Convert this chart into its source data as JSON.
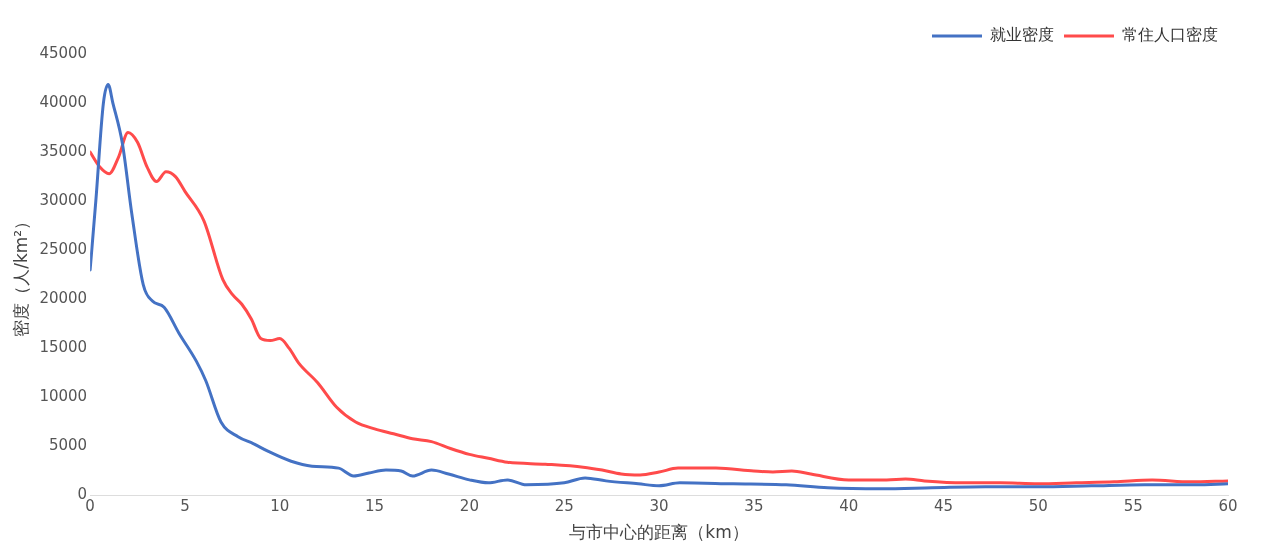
{
  "chart_data": {
    "type": "line",
    "xlabel": "与市中心的距离（km）",
    "ylabel": "密度（人/km²）",
    "xlim": [
      0,
      60
    ],
    "xticks": [
      0,
      5,
      10,
      15,
      20,
      25,
      30,
      35,
      40,
      45,
      50,
      55,
      60
    ],
    "ylim": [
      0,
      45000
    ],
    "yticks": [
      0,
      5000,
      10000,
      15000,
      20000,
      25000,
      30000,
      35000,
      40000,
      45000
    ],
    "grid": false,
    "legend": "top right",
    "marker": "none",
    "line_style": "solid",
    "series": [
      {
        "name": "就业密度",
        "color": "#4472c4",
        "x": [
          0,
          0.3,
          0.7,
          0.95,
          1.2,
          1.7,
          2.2,
          2.8,
          3.3,
          3.9,
          4.7,
          5.6,
          6.1,
          6.9,
          7.8,
          8.6,
          9.4,
          10.6,
          11.7,
          13.1,
          13.9,
          14.7,
          15.6,
          16.4,
          17,
          18,
          18.9,
          20,
          21,
          22,
          23,
          25,
          26.1,
          27.2,
          28.9,
          30,
          31.1,
          33.9,
          36.7,
          38.9,
          41.7,
          44.4,
          47.2,
          50,
          52.8,
          55.6,
          58.3,
          60
        ],
        "values": [
          23000,
          30000,
          40000,
          41900,
          40000,
          35900,
          28700,
          21500,
          19800,
          19200,
          16500,
          13700,
          11700,
          7500,
          6000,
          5300,
          4500,
          3500,
          3000,
          2800,
          2000,
          2300,
          2600,
          2500,
          2000,
          2600,
          2200,
          1600,
          1300,
          1600,
          1100,
          1300,
          1800,
          1500,
          1200,
          1000,
          1300,
          1200,
          1100,
          800,
          700,
          800,
          900,
          900,
          1000,
          1100,
          1100,
          1200
        ]
      },
      {
        "name": "常住人口密度",
        "color": "#ff4b4b",
        "x": [
          0,
          0.5,
          1,
          1.5,
          2,
          2.5,
          3,
          3.5,
          4,
          4.5,
          5,
          6,
          7,
          7.5,
          8,
          8.5,
          9,
          9.5,
          10,
          10.5,
          11,
          12,
          13,
          14,
          15,
          16,
          17,
          18,
          19,
          20,
          21,
          22,
          24,
          26,
          27,
          28,
          29,
          30,
          31,
          33,
          35,
          36,
          37,
          38,
          40,
          42,
          43,
          44,
          46,
          48,
          50,
          52,
          54,
          56,
          58,
          60
        ],
        "values": [
          35000,
          33500,
          32800,
          34500,
          37000,
          36000,
          33500,
          32000,
          33000,
          32500,
          31000,
          28000,
          22000,
          20500,
          19500,
          18000,
          16000,
          15800,
          16000,
          15000,
          13500,
          11500,
          9000,
          7500,
          6800,
          6300,
          5800,
          5500,
          4800,
          4200,
          3800,
          3400,
          3200,
          2900,
          2600,
          2200,
          2100,
          2400,
          2800,
          2800,
          2500,
          2400,
          2500,
          2200,
          1600,
          1600,
          1700,
          1500,
          1300,
          1300,
          1200,
          1300,
          1400,
          1600,
          1400,
          1500
        ]
      }
    ]
  }
}
